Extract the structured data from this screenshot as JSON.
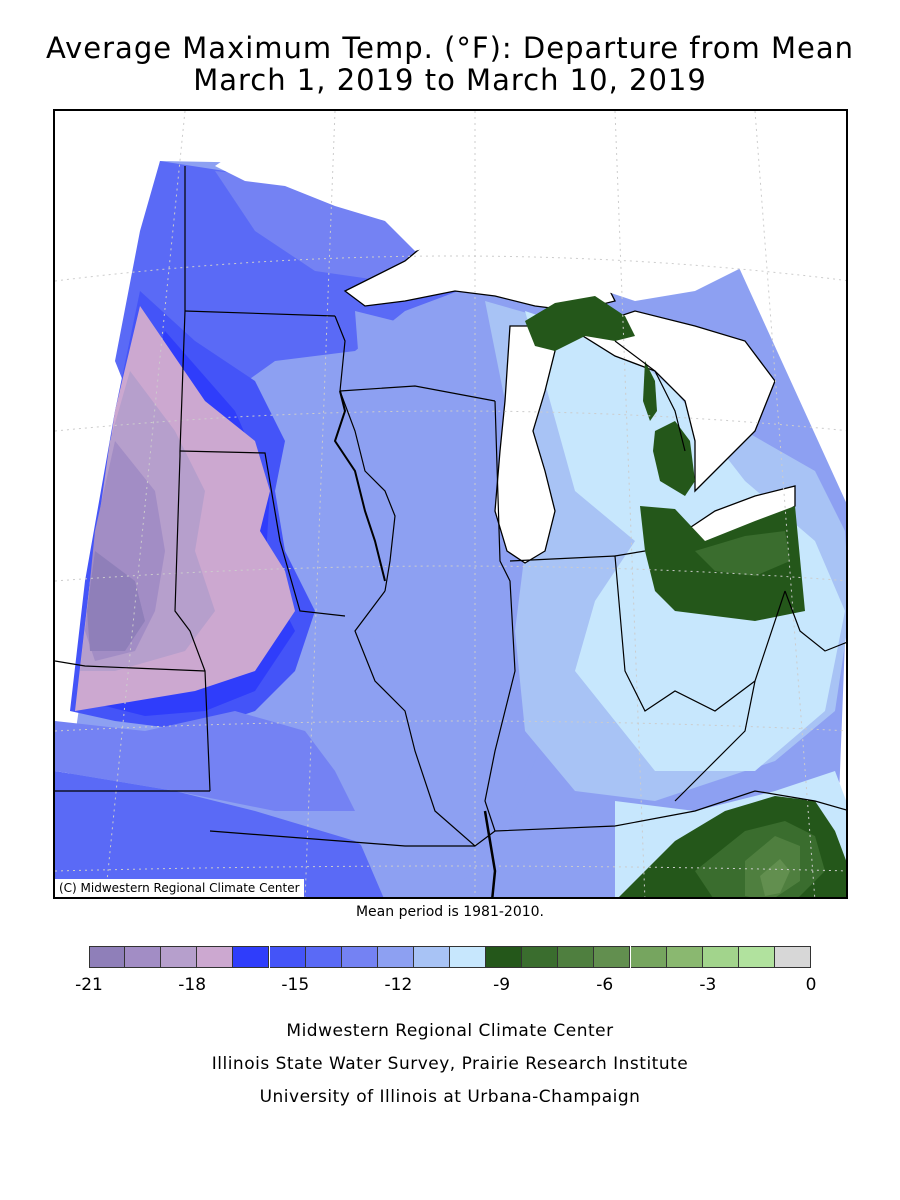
{
  "title_line1": "Average Maximum Temp. (°F): Departure from Mean",
  "title_line2": "March 1, 2019 to March 10, 2019",
  "copyright": "(C) Midwestern Regional Climate Center",
  "mean_note": "Mean period is 1981-2010.",
  "legend": {
    "colors": [
      "#8f7fb9",
      "#a28dc5",
      "#b69fcc",
      "#cca8d0",
      "#2f3dfb",
      "#4454f8",
      "#5a6af6",
      "#7482f3",
      "#8da0f2",
      "#a8c3f5",
      "#c7e7fd",
      "#24571a",
      "#3a6d2e",
      "#4f7f3f",
      "#628f4f",
      "#76a55f",
      "#8ab870",
      "#a2d48c",
      "#b1e29e",
      "#d7d7d7"
    ],
    "tick_labels": [
      "-21",
      "-18",
      "-15",
      "-12",
      "-9",
      "-6",
      "-3",
      "0"
    ]
  },
  "credits": {
    "line1": "Midwestern Regional Climate Center",
    "line2": "Illinois State Water Survey, Prairie Research Institute",
    "line3": "University of Illinois at Urbana-Champaign"
  }
}
